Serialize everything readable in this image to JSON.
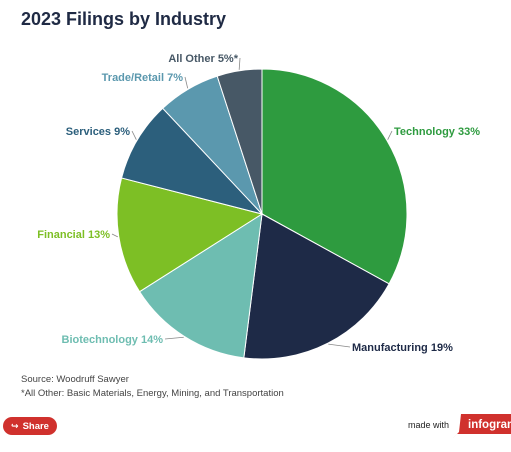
{
  "chart_data": {
    "type": "pie",
    "title": "2023 Filings by Industry",
    "slices": [
      {
        "label": "Technology 33%",
        "value": 33,
        "color": "#2e9b3f"
      },
      {
        "label": "Manufacturing 19%",
        "value": 19,
        "color": "#1e2a47"
      },
      {
        "label": "Biotechnology 14%",
        "value": 14,
        "color": "#6ebdb1"
      },
      {
        "label": "Financial 13%",
        "value": 13,
        "color": "#7dbf25"
      },
      {
        "label": "Services 9%",
        "value": 9,
        "color": "#2c5f7c"
      },
      {
        "label": "Trade/Retail 7%",
        "value": 7,
        "color": "#5b98ae"
      },
      {
        "label": "All Other 5%*",
        "value": 5,
        "color": "#475866"
      }
    ],
    "label_colors": {
      "Technology 33%": "#2e9b3f",
      "Manufacturing 19%": "#1e2a47",
      "Biotechnology 14%": "#6ebdb1",
      "Financial 13%": "#7dbf25",
      "Services 9%": "#2c5f7c",
      "Trade/Retail 7%": "#5b98ae",
      "All Other 5%*": "#475866"
    }
  },
  "footnotes": {
    "source": "Source: Woodruff Sawyer",
    "other_note": "*All Other: Basic Materials, Energy, Mining, and Transportation"
  },
  "footer": {
    "share_label": "Share",
    "made_with": "made with",
    "brand": "infogram",
    "brand_color": "#d0312d"
  }
}
